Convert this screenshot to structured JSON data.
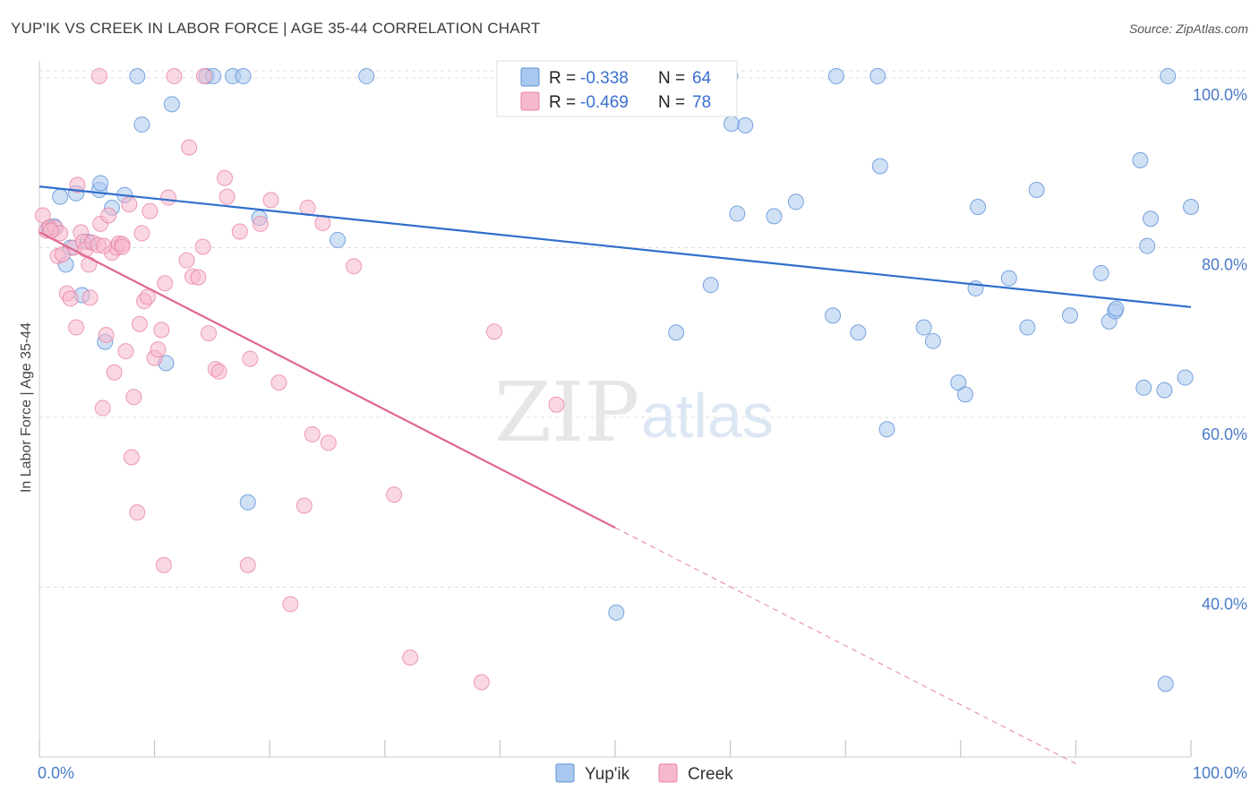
{
  "header": {
    "title": "YUP'IK VS CREEK IN LABOR FORCE | AGE 35-44 CORRELATION CHART",
    "source": "Source: ZipAtlas.com"
  },
  "watermark": {
    "part1": "ZIP",
    "part2": "atlas"
  },
  "legend": {
    "rows": [
      {
        "r_label": "R =",
        "r_value": "-0.338",
        "n_label": "N =",
        "n_value": "64",
        "color": "#a9c8ef"
      },
      {
        "r_label": "R =",
        "r_value": "-0.469",
        "n_label": "N =",
        "n_value": "78",
        "color": "#f5b8cc"
      }
    ]
  },
  "colors": {
    "yupik_fill": "#a9c8ef",
    "yupik_stroke": "#5b8fd6",
    "yupik_line": "#2f6fcc",
    "creek_fill": "#f5b8cc",
    "creek_stroke": "#e882a4",
    "creek_line": "#e0678f",
    "grid": "#dddddd",
    "tick_label": "#4a7bc8"
  },
  "chart_data": {
    "type": "scatter",
    "title": "YUP'IK VS CREEK IN LABOR FORCE | AGE 35-44 CORRELATION CHART",
    "xlabel": "",
    "ylabel": "In Labor Force | Age 35-44",
    "xlim": [
      0,
      100
    ],
    "ylim": [
      20,
      102
    ],
    "x_ticks": [
      "0.0%",
      "100.0%"
    ],
    "y_ticks": [
      {
        "value": 100,
        "label": "100.0%"
      },
      {
        "value": 80,
        "label": "80.0%"
      },
      {
        "value": 60,
        "label": "60.0%"
      },
      {
        "value": 40,
        "label": "40.0%"
      }
    ],
    "grid": true,
    "legend_position": "top-center",
    "series": [
      {
        "name": "Yup'ik",
        "R": -0.338,
        "N": 64,
        "trend": {
          "x": [
            0,
            100
          ],
          "y": [
            87.2,
            73.0
          ]
        },
        "points": [
          [
            0.8,
            82.3
          ],
          [
            1.3,
            82.5
          ],
          [
            1.8,
            86.0
          ],
          [
            2.3,
            78.0
          ],
          [
            2.7,
            80.0
          ],
          [
            3.2,
            86.4
          ],
          [
            3.7,
            74.4
          ],
          [
            4.2,
            80.7
          ],
          [
            5.2,
            86.8
          ],
          [
            5.3,
            87.6
          ],
          [
            5.7,
            68.9
          ],
          [
            6.3,
            84.7
          ],
          [
            7.4,
            86.2
          ],
          [
            8.5,
            100.2
          ],
          [
            8.9,
            94.5
          ],
          [
            11.0,
            66.4
          ],
          [
            11.5,
            96.9
          ],
          [
            14.5,
            100.2
          ],
          [
            15.1,
            100.2
          ],
          [
            16.8,
            100.2
          ],
          [
            17.7,
            100.2
          ],
          [
            18.1,
            50.0
          ],
          [
            19.1,
            83.5
          ],
          [
            25.9,
            80.9
          ],
          [
            28.4,
            100.2
          ],
          [
            49.4,
            100.2
          ],
          [
            50.1,
            37.0
          ],
          [
            55.3,
            70.0
          ],
          [
            58.3,
            75.6
          ],
          [
            60.0,
            100.2
          ],
          [
            60.1,
            94.6
          ],
          [
            60.6,
            84.0
          ],
          [
            61.3,
            94.4
          ],
          [
            63.8,
            83.7
          ],
          [
            65.7,
            85.4
          ],
          [
            68.9,
            72.0
          ],
          [
            69.2,
            100.2
          ],
          [
            71.1,
            70.0
          ],
          [
            72.8,
            100.2
          ],
          [
            73.0,
            89.6
          ],
          [
            73.6,
            58.6
          ],
          [
            76.8,
            70.6
          ],
          [
            77.6,
            69.0
          ],
          [
            79.8,
            64.1
          ],
          [
            80.4,
            62.7
          ],
          [
            81.3,
            75.2
          ],
          [
            81.5,
            84.8
          ],
          [
            84.2,
            76.4
          ],
          [
            85.8,
            70.6
          ],
          [
            86.6,
            86.8
          ],
          [
            89.5,
            72.0
          ],
          [
            92.2,
            77.0
          ],
          [
            92.9,
            71.3
          ],
          [
            93.4,
            72.5
          ],
          [
            93.5,
            72.8
          ],
          [
            95.6,
            90.3
          ],
          [
            95.9,
            63.5
          ],
          [
            96.2,
            80.2
          ],
          [
            96.5,
            83.4
          ],
          [
            97.7,
            63.2
          ],
          [
            97.8,
            28.6
          ],
          [
            99.5,
            64.7
          ],
          [
            100.0,
            84.8
          ],
          [
            98.0,
            100.2
          ]
        ]
      },
      {
        "name": "Creek",
        "R": -0.469,
        "N": 78,
        "trend": {
          "x": [
            0,
            50
          ],
          "y": [
            81.8,
            47.0
          ]
        },
        "trend_dashed": {
          "x": [
            50,
            90
          ],
          "y": [
            47.0,
            19.2
          ]
        },
        "points": [
          [
            0.3,
            83.8
          ],
          [
            0.6,
            82.0
          ],
          [
            0.9,
            82.4
          ],
          [
            1.4,
            82.3
          ],
          [
            1.6,
            79.0
          ],
          [
            1.8,
            81.7
          ],
          [
            2.4,
            74.6
          ],
          [
            2.7,
            74.0
          ],
          [
            3.0,
            80.0
          ],
          [
            3.2,
            70.6
          ],
          [
            3.3,
            87.4
          ],
          [
            3.6,
            81.8
          ],
          [
            3.8,
            80.7
          ],
          [
            4.0,
            79.8
          ],
          [
            4.3,
            78.0
          ],
          [
            4.4,
            74.1
          ],
          [
            4.6,
            80.6
          ],
          [
            5.1,
            80.3
          ],
          [
            5.3,
            82.8
          ],
          [
            5.5,
            61.1
          ],
          [
            5.8,
            69.7
          ],
          [
            6.0,
            83.8
          ],
          [
            6.3,
            79.4
          ],
          [
            6.5,
            65.3
          ],
          [
            6.7,
            80.0
          ],
          [
            6.9,
            80.5
          ],
          [
            7.2,
            80.4
          ],
          [
            7.5,
            67.8
          ],
          [
            7.8,
            85.1
          ],
          [
            8.0,
            55.3
          ],
          [
            8.2,
            62.4
          ],
          [
            8.5,
            48.8
          ],
          [
            8.7,
            71.0
          ],
          [
            8.9,
            81.7
          ],
          [
            9.1,
            73.7
          ],
          [
            9.6,
            84.3
          ],
          [
            10.0,
            67.0
          ],
          [
            10.3,
            68.0
          ],
          [
            10.6,
            70.3
          ],
          [
            10.8,
            42.6
          ],
          [
            10.9,
            75.8
          ],
          [
            11.2,
            85.9
          ],
          [
            12.8,
            78.5
          ],
          [
            13.0,
            91.8
          ],
          [
            13.3,
            76.6
          ],
          [
            13.8,
            76.5
          ],
          [
            14.2,
            80.1
          ],
          [
            14.7,
            69.9
          ],
          [
            15.3,
            65.7
          ],
          [
            15.6,
            65.4
          ],
          [
            16.1,
            88.2
          ],
          [
            16.3,
            86.0
          ],
          [
            17.4,
            81.9
          ],
          [
            18.1,
            42.6
          ],
          [
            18.3,
            66.9
          ],
          [
            19.2,
            82.8
          ],
          [
            20.1,
            85.6
          ],
          [
            20.8,
            64.1
          ],
          [
            21.8,
            38.0
          ],
          [
            23.0,
            49.6
          ],
          [
            23.3,
            84.7
          ],
          [
            23.7,
            58.0
          ],
          [
            24.6,
            82.9
          ],
          [
            25.1,
            57.0
          ],
          [
            27.3,
            77.8
          ],
          [
            30.8,
            50.9
          ],
          [
            32.2,
            31.7
          ],
          [
            38.4,
            28.8
          ],
          [
            39.5,
            70.1
          ],
          [
            44.9,
            61.5
          ],
          [
            5.2,
            100.2
          ],
          [
            11.7,
            100.2
          ],
          [
            14.3,
            100.2
          ],
          [
            7.2,
            80.1
          ],
          [
            1.0,
            82.0
          ],
          [
            2.0,
            79.2
          ],
          [
            5.6,
            80.2
          ],
          [
            9.4,
            74.2
          ]
        ]
      }
    ]
  },
  "bottom_legend": [
    {
      "label": "Yup'ik",
      "color": "#a9c8ef"
    },
    {
      "label": "Creek",
      "color": "#f5b8cc"
    }
  ]
}
